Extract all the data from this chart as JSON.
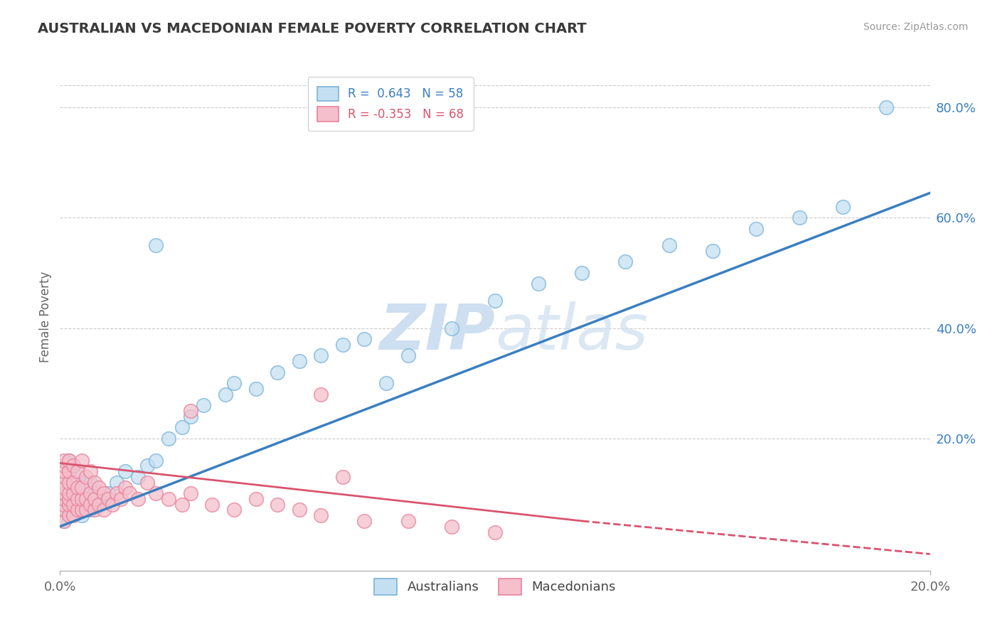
{
  "title": "AUSTRALIAN VS MACEDONIAN FEMALE POVERTY CORRELATION CHART",
  "source": "Source: ZipAtlas.com",
  "ylabel": "Female Poverty",
  "right_yticks": [
    "80.0%",
    "60.0%",
    "40.0%",
    "20.0%"
  ],
  "right_ytick_vals": [
    0.8,
    0.6,
    0.4,
    0.2
  ],
  "xlim": [
    0.0,
    0.2
  ],
  "ylim": [
    -0.04,
    0.88
  ],
  "r_australian": 0.643,
  "n_australian": 58,
  "r_macedonian": -0.353,
  "n_macedonian": 68,
  "blue_color": "#7ab3d8",
  "blue_fill": "#c5dff2",
  "pink_color": "#e8829a",
  "pink_fill": "#f5bfcc",
  "trend_blue": "#3a7fc1",
  "trend_pink": "#d9546e",
  "watermark_color": "#cddff0",
  "legend_r1": "R =  0.643   N = 58",
  "legend_r2": "R = -0.353   N = 68",
  "aus_x": [
    0.001,
    0.001,
    0.001,
    0.001,
    0.002,
    0.002,
    0.002,
    0.002,
    0.002,
    0.003,
    0.003,
    0.003,
    0.003,
    0.004,
    0.004,
    0.004,
    0.005,
    0.005,
    0.005,
    0.006,
    0.006,
    0.007,
    0.007,
    0.008,
    0.009,
    0.01,
    0.011,
    0.013,
    0.015,
    0.018,
    0.02,
    0.022,
    0.025,
    0.028,
    0.03,
    0.033,
    0.038,
    0.04,
    0.045,
    0.05,
    0.055,
    0.06,
    0.065,
    0.07,
    0.075,
    0.08,
    0.09,
    0.1,
    0.11,
    0.12,
    0.13,
    0.14,
    0.15,
    0.16,
    0.17,
    0.18,
    0.19,
    0.022
  ],
  "aus_y": [
    0.05,
    0.07,
    0.09,
    0.12,
    0.06,
    0.08,
    0.1,
    0.14,
    0.16,
    0.07,
    0.09,
    0.11,
    0.15,
    0.08,
    0.1,
    0.13,
    0.06,
    0.09,
    0.12,
    0.08,
    0.11,
    0.07,
    0.12,
    0.1,
    0.08,
    0.09,
    0.1,
    0.12,
    0.14,
    0.13,
    0.15,
    0.16,
    0.2,
    0.22,
    0.24,
    0.26,
    0.28,
    0.3,
    0.29,
    0.32,
    0.34,
    0.35,
    0.37,
    0.38,
    0.3,
    0.35,
    0.4,
    0.45,
    0.48,
    0.5,
    0.52,
    0.55,
    0.54,
    0.58,
    0.6,
    0.62,
    0.8,
    0.55
  ],
  "mac_x": [
    0.001,
    0.001,
    0.001,
    0.001,
    0.001,
    0.001,
    0.001,
    0.001,
    0.001,
    0.001,
    0.002,
    0.002,
    0.002,
    0.002,
    0.002,
    0.002,
    0.002,
    0.003,
    0.003,
    0.003,
    0.003,
    0.003,
    0.004,
    0.004,
    0.004,
    0.004,
    0.005,
    0.005,
    0.005,
    0.005,
    0.006,
    0.006,
    0.006,
    0.007,
    0.007,
    0.007,
    0.008,
    0.008,
    0.008,
    0.009,
    0.009,
    0.01,
    0.01,
    0.011,
    0.012,
    0.013,
    0.014,
    0.015,
    0.016,
    0.018,
    0.02,
    0.022,
    0.025,
    0.028,
    0.03,
    0.035,
    0.04,
    0.045,
    0.05,
    0.055,
    0.06,
    0.07,
    0.08,
    0.09,
    0.1,
    0.06,
    0.03,
    0.065
  ],
  "mac_y": [
    0.05,
    0.07,
    0.08,
    0.09,
    0.1,
    0.11,
    0.13,
    0.14,
    0.15,
    0.16,
    0.06,
    0.08,
    0.09,
    0.1,
    0.12,
    0.14,
    0.16,
    0.06,
    0.08,
    0.1,
    0.12,
    0.15,
    0.07,
    0.09,
    0.11,
    0.14,
    0.07,
    0.09,
    0.11,
    0.16,
    0.07,
    0.09,
    0.13,
    0.08,
    0.1,
    0.14,
    0.07,
    0.09,
    0.12,
    0.08,
    0.11,
    0.07,
    0.1,
    0.09,
    0.08,
    0.1,
    0.09,
    0.11,
    0.1,
    0.09,
    0.12,
    0.1,
    0.09,
    0.08,
    0.1,
    0.08,
    0.07,
    0.09,
    0.08,
    0.07,
    0.06,
    0.05,
    0.05,
    0.04,
    0.03,
    0.28,
    0.25,
    0.13
  ],
  "trend_aus_x0": 0.0,
  "trend_aus_x1": 0.2,
  "trend_aus_y0": 0.04,
  "trend_aus_y1": 0.645,
  "trend_mac_solid_x0": 0.0,
  "trend_mac_solid_x1": 0.12,
  "trend_mac_y0": 0.155,
  "trend_mac_y1": 0.05,
  "trend_mac_dash_x0": 0.12,
  "trend_mac_dash_x1": 0.2,
  "trend_mac_dash_y0": 0.05,
  "trend_mac_dash_y1": -0.01
}
